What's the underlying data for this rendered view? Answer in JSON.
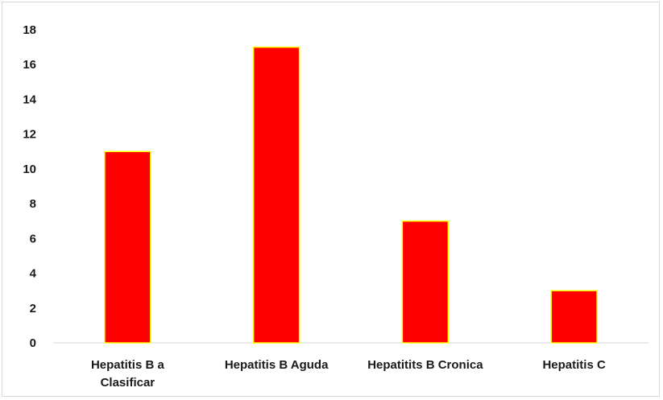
{
  "chart_data": {
    "type": "bar",
    "categories": [
      [
        "Hepatitis B a",
        "Clasificar"
      ],
      [
        "Hepatitis B Aguda"
      ],
      [
        "Hepatitits B Cronica"
      ],
      [
        "Hepatitis C"
      ]
    ],
    "values": [
      11,
      17,
      7,
      3
    ],
    "ylim": [
      0,
      18
    ],
    "yticks": [
      0,
      2,
      4,
      6,
      8,
      10,
      12,
      14,
      16,
      18
    ],
    "grid": false,
    "legend": "none",
    "bar_color": "#ff0000",
    "bar_edge_color": "#ffff00"
  }
}
